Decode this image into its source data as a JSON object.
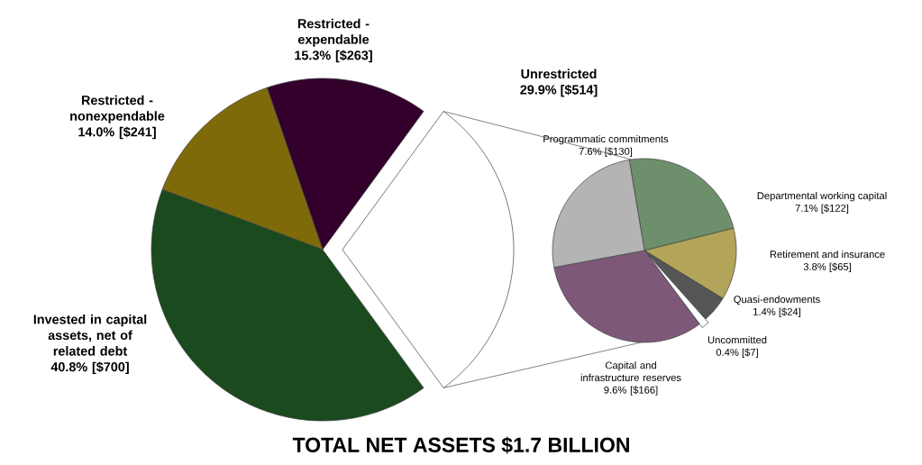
{
  "chart_data": [
    {
      "type": "pie",
      "title": "TOTAL NET ASSETS $1.7 BILLION",
      "categories": [
        "Unrestricted",
        "Restricted - expendable",
        "Restricted - nonexpendable",
        "Invested in capital assets, net of related debt"
      ],
      "values": [
        514,
        263,
        241,
        700
      ],
      "value_labels": [
        "29.9% [$514]",
        "15.3% [$263]",
        "14.0% [$241]",
        "40.8% [$700]"
      ],
      "colors": [
        "#ffffff",
        "#32002a",
        "#7f6a0a",
        "#1a4a1e"
      ]
    },
    {
      "type": "pie",
      "categories": [
        "Departmental working capital",
        "Retirement and insurance",
        "Quasi-endowments",
        "Uncommitted",
        "Capital and infrastructure reserves",
        "Programmatic commitments"
      ],
      "values": [
        122,
        65,
        24,
        7,
        166,
        130
      ],
      "value_labels": [
        "7.1% [$122]",
        "3.8% [$65]",
        "1.4% [$24]",
        "0.4% [$7]",
        "9.6% [$166]",
        "7.6% [$130]"
      ],
      "colors": [
        "#6e8f6c",
        "#b2a458",
        "#555555",
        "#ffffff",
        "#7d5878",
        "#b4b4b4"
      ]
    }
  ]
}
